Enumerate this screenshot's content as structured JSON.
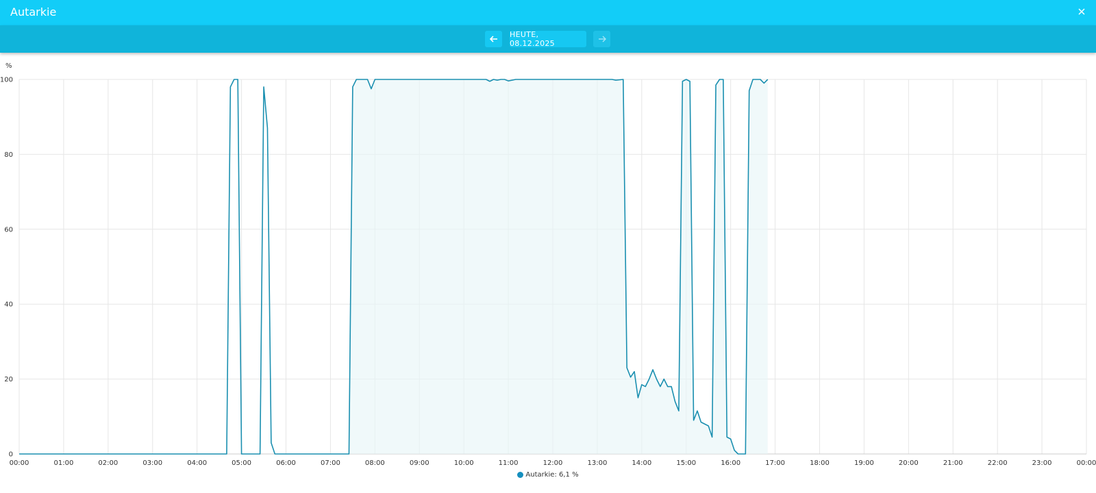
{
  "window": {
    "title": "Autarkie"
  },
  "toolbar": {
    "date_label": "HEUTE, 08.12.2025"
  },
  "legend": {
    "label": "Autarkie: 6,1 %"
  },
  "colors": {
    "header": "#12cdf8",
    "toolbar": "#10b4da",
    "line": "#1a8fb0",
    "fill": "#e8f6f8",
    "legend_dot": "#168fbe"
  },
  "chart_data": {
    "type": "area",
    "ylabel": "%",
    "ylim": [
      0,
      100
    ],
    "yticks": [
      0,
      20,
      40,
      60,
      80,
      100
    ],
    "xticks": [
      "00:00",
      "01:00",
      "02:00",
      "03:00",
      "04:00",
      "05:00",
      "06:00",
      "07:00",
      "08:00",
      "09:00",
      "10:00",
      "11:00",
      "12:00",
      "13:00",
      "14:00",
      "15:00",
      "16:00",
      "17:00",
      "18:00",
      "19:00",
      "20:00",
      "21:00",
      "22:00",
      "23:00",
      "00:00"
    ],
    "grid": true,
    "legend_position": "bottom",
    "series": [
      {
        "name": "Autarkie",
        "points": [
          [
            "00:00",
            0
          ],
          [
            "04:40",
            0
          ],
          [
            "04:45",
            98
          ],
          [
            "04:50",
            100
          ],
          [
            "04:55",
            100
          ],
          [
            "05:00",
            0
          ],
          [
            "05:25",
            0
          ],
          [
            "05:30",
            98
          ],
          [
            "05:35",
            87
          ],
          [
            "05:40",
            3
          ],
          [
            "05:45",
            0
          ],
          [
            "07:25",
            0
          ],
          [
            "07:30",
            98
          ],
          [
            "07:35",
            100
          ],
          [
            "07:50",
            100
          ],
          [
            "07:55",
            97.5
          ],
          [
            "08:00",
            100
          ],
          [
            "10:30",
            100
          ],
          [
            "10:35",
            99.5
          ],
          [
            "10:40",
            100
          ],
          [
            "10:45",
            99.8
          ],
          [
            "10:50",
            100
          ],
          [
            "10:55",
            100
          ],
          [
            "11:00",
            99.6
          ],
          [
            "11:10",
            100
          ],
          [
            "13:20",
            100
          ],
          [
            "13:25",
            99.8
          ],
          [
            "13:35",
            100
          ],
          [
            "13:40",
            23
          ],
          [
            "13:45",
            20.5
          ],
          [
            "13:50",
            22
          ],
          [
            "13:55",
            15
          ],
          [
            "14:00",
            18.5
          ],
          [
            "14:05",
            18
          ],
          [
            "14:10",
            20
          ],
          [
            "14:15",
            22.5
          ],
          [
            "14:20",
            20
          ],
          [
            "14:25",
            18
          ],
          [
            "14:30",
            20
          ],
          [
            "14:35",
            18
          ],
          [
            "14:40",
            18
          ],
          [
            "14:45",
            14
          ],
          [
            "14:50",
            11.5
          ],
          [
            "14:55",
            99.5
          ],
          [
            "15:00",
            100
          ],
          [
            "15:05",
            99.5
          ],
          [
            "15:10",
            9
          ],
          [
            "15:15",
            11.5
          ],
          [
            "15:20",
            8.5
          ],
          [
            "15:25",
            8
          ],
          [
            "15:30",
            7.5
          ],
          [
            "15:35",
            4.5
          ],
          [
            "15:40",
            98.5
          ],
          [
            "15:45",
            100
          ],
          [
            "15:50",
            100
          ],
          [
            "15:55",
            4.5
          ],
          [
            "16:00",
            4
          ],
          [
            "16:05",
            1
          ],
          [
            "16:10",
            0
          ],
          [
            "16:20",
            0
          ],
          [
            "16:25",
            97
          ],
          [
            "16:30",
            100
          ],
          [
            "16:40",
            100
          ],
          [
            "16:45",
            99
          ],
          [
            "16:50",
            100
          ]
        ]
      }
    ]
  }
}
